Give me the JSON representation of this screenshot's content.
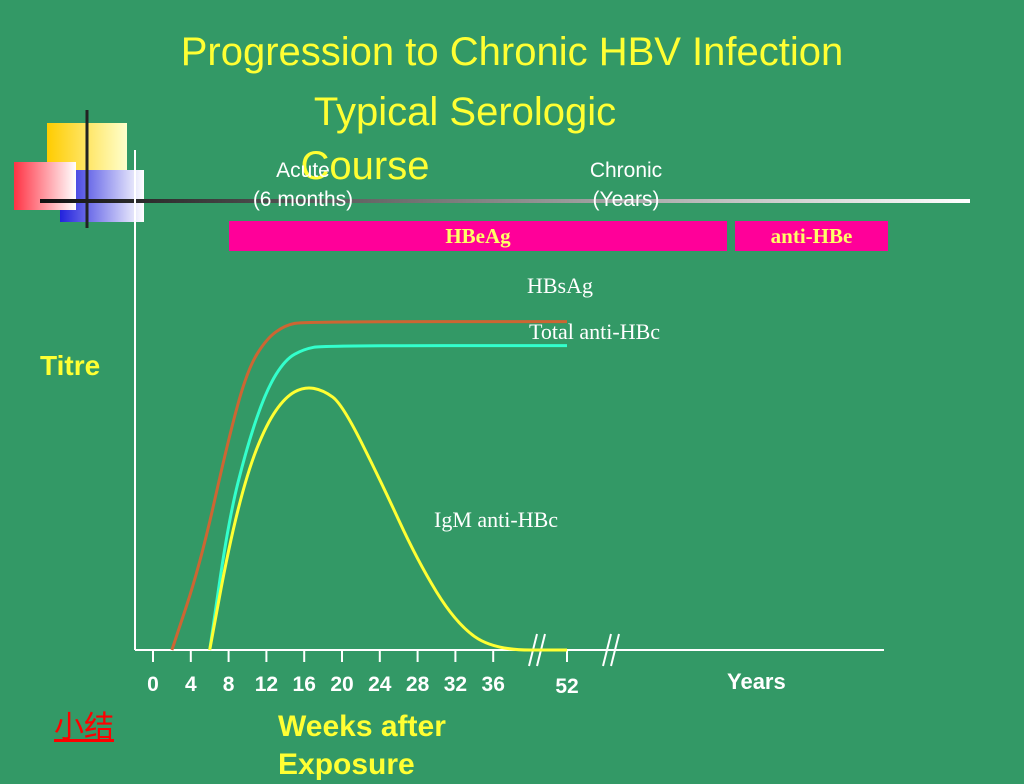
{
  "title": "Progression to Chronic HBV Infection",
  "subtitle_line1": "Typical Serologic",
  "subtitle_line2": "Course",
  "phases": {
    "acute_line1": "Acute",
    "acute_line2": "(6 months)",
    "chronic_line1": "Chronic",
    "chronic_line2": "(Years)"
  },
  "bars": {
    "hbeag": "HBeAg",
    "anti_hbe": "anti-HBe"
  },
  "y_label": "Titre",
  "x_label": "Weeks after Exposure",
  "years_label": "Years",
  "summary_link": "小结",
  "colors": {
    "background": "#339966",
    "hbsag": "#cc6633",
    "total_anti_hbc": "#33ffcc",
    "igm_anti_hbc": "#ffff33",
    "bar": "#ff0099"
  },
  "chart_data": {
    "type": "line",
    "xlabel": "Weeks after Exposure",
    "ylabel": "Titre",
    "x_ticks": [
      0,
      4,
      8,
      12,
      16,
      20,
      24,
      28,
      32,
      36
    ],
    "x_break_tick": 52,
    "series": [
      {
        "name": "HBsAg",
        "points": [
          [
            2,
            0
          ],
          [
            5,
            0.25
          ],
          [
            8,
            0.62
          ],
          [
            10,
            0.82
          ],
          [
            12,
            0.91
          ],
          [
            14,
            0.95
          ],
          [
            16,
            0.96
          ],
          [
            52,
            0.96
          ]
        ]
      },
      {
        "name": "Total anti-HBc",
        "points": [
          [
            6,
            0
          ],
          [
            8,
            0.38
          ],
          [
            10,
            0.6
          ],
          [
            12,
            0.76
          ],
          [
            14,
            0.85
          ],
          [
            16,
            0.88
          ],
          [
            18,
            0.89
          ],
          [
            52,
            0.89
          ]
        ]
      },
      {
        "name": "IgM anti-HBc",
        "points": [
          [
            6,
            0
          ],
          [
            8,
            0.3
          ],
          [
            10,
            0.52
          ],
          [
            12,
            0.66
          ],
          [
            14,
            0.74
          ],
          [
            16,
            0.77
          ],
          [
            18,
            0.76
          ],
          [
            20,
            0.72
          ],
          [
            24,
            0.5
          ],
          [
            28,
            0.26
          ],
          [
            32,
            0.08
          ],
          [
            36,
            0
          ],
          [
            52,
            0
          ]
        ]
      }
    ]
  }
}
